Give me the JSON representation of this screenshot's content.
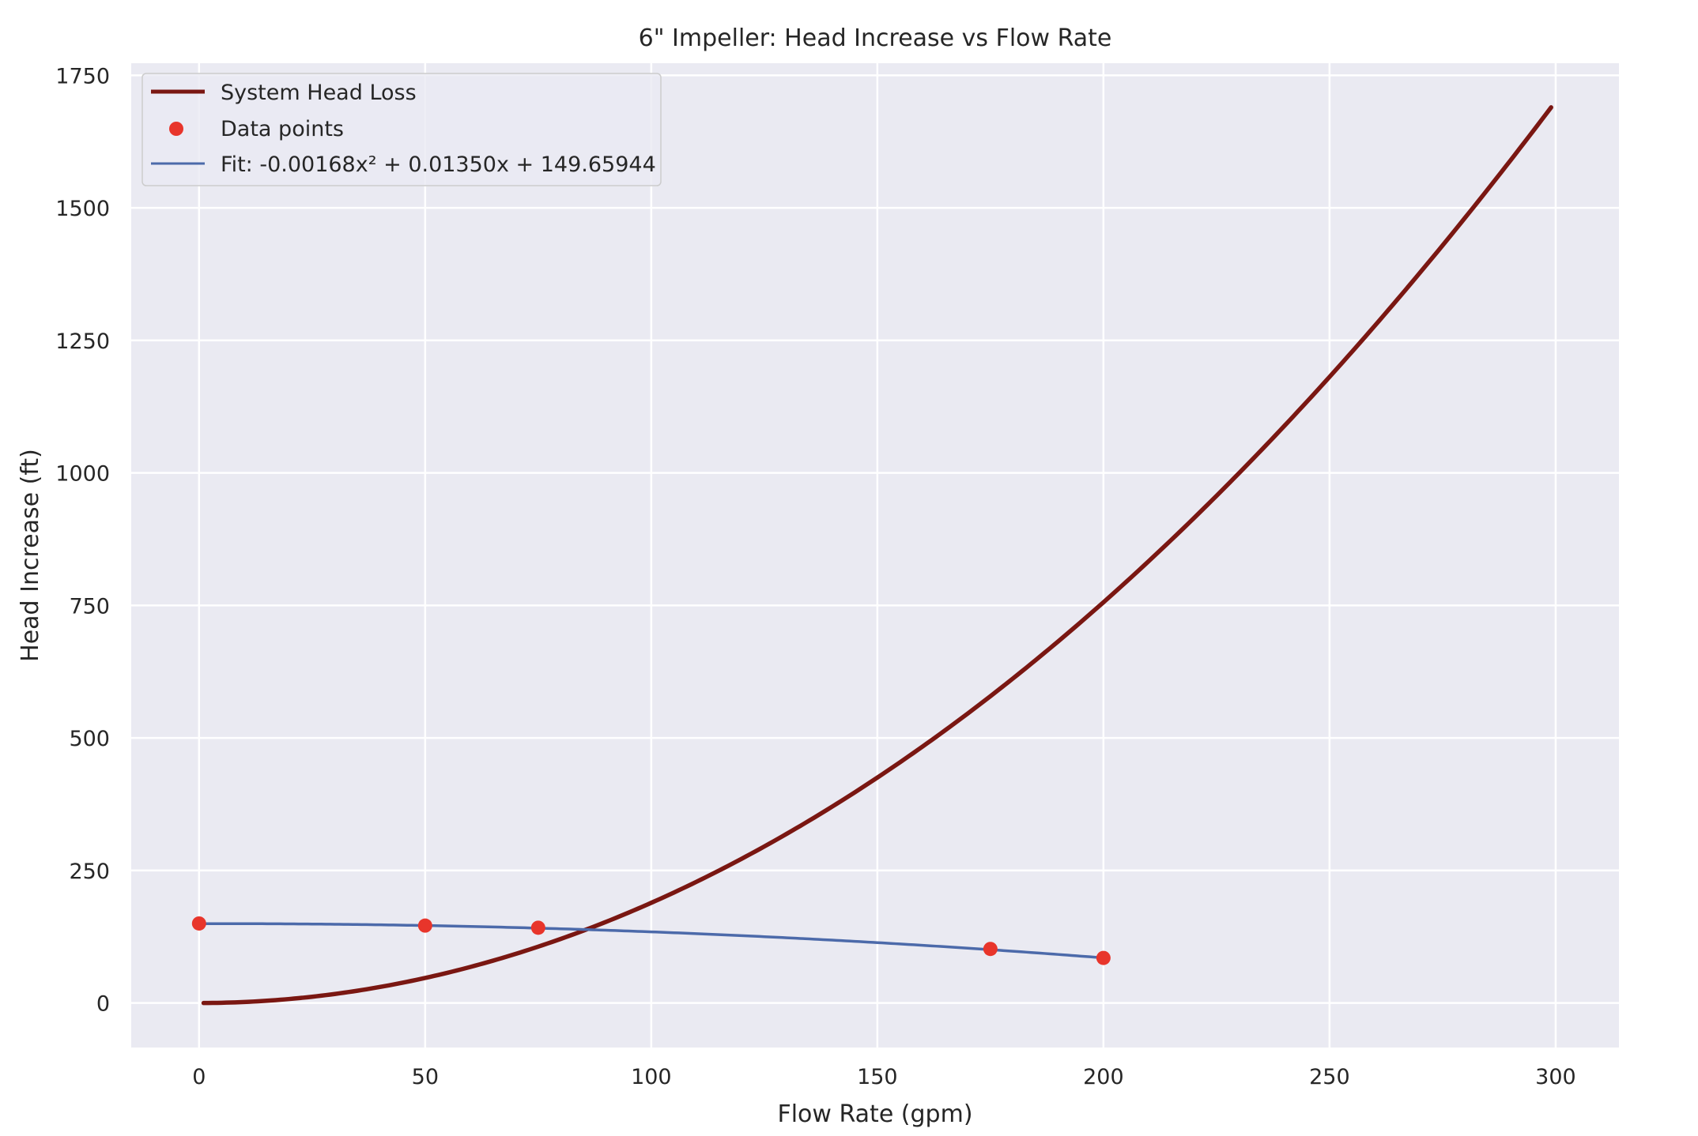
{
  "chart_data": {
    "type": "line",
    "title": "6\" Impeller: Head Increase vs Flow Rate",
    "xlabel": "Flow Rate (gpm)",
    "ylabel": "Head Increase (ft)",
    "xlim": [
      -15,
      314
    ],
    "ylim": [
      -84,
      1773
    ],
    "xticks": [
      0,
      50,
      100,
      150,
      200,
      250,
      300
    ],
    "yticks": [
      0,
      250,
      500,
      750,
      1000,
      1250,
      1500,
      1750
    ],
    "grid": true,
    "legend_position": "top-left",
    "series": [
      {
        "name": "System Head Loss",
        "kind": "line",
        "color": "#7a1712",
        "formula": "0.0189x^2",
        "x_range": [
          1,
          299
        ]
      },
      {
        "name": "Data points",
        "kind": "scatter",
        "color": "#e8352b",
        "points": [
          [
            0,
            150
          ],
          [
            50,
            146
          ],
          [
            75,
            142
          ],
          [
            175,
            102
          ],
          [
            200,
            85
          ]
        ]
      },
      {
        "name": "Fit: -0.00168x² + 0.01350x + 149.65944",
        "kind": "line",
        "color": "#4c6aaa",
        "coefficients": [
          -0.00168,
          0.0135,
          149.65944
        ],
        "x_range": [
          0,
          200
        ]
      }
    ]
  }
}
